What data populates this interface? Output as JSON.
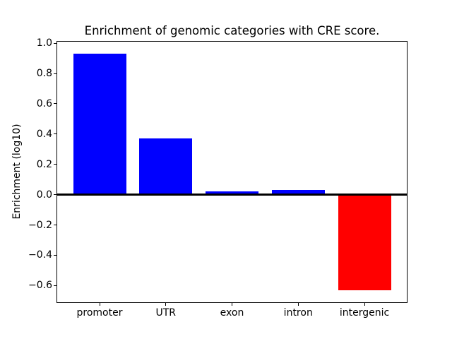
{
  "chart": {
    "title": "Enrichment of genomic categories with CRE score.",
    "ylabel": "Enrichment (log10)"
  },
  "chart_data": {
    "type": "bar",
    "title": "Enrichment of genomic categories with CRE score.",
    "xlabel": "",
    "ylabel": "Enrichment (log10)",
    "categories": [
      "promoter",
      "UTR",
      "exon",
      "intron",
      "intergenic"
    ],
    "values": [
      0.93,
      0.37,
      0.02,
      0.03,
      -0.63
    ],
    "bar_colors": [
      "#0000ff",
      "#0000ff",
      "#0000ff",
      "#0000ff",
      "#ff0000"
    ],
    "positive_color": "#0000ff",
    "negative_color": "#ff0000",
    "yticks": [
      1.0,
      0.8,
      0.6,
      0.4,
      0.2,
      0.0,
      -0.2,
      -0.4,
      -0.6
    ],
    "ylim": [
      -0.71,
      1.01
    ],
    "xlim": [
      -0.64,
      4.64
    ],
    "bar_width": 0.8,
    "grid": false,
    "zero_line": true,
    "legend": "none",
    "background": "#ffffff",
    "axis_color": "#000000"
  }
}
